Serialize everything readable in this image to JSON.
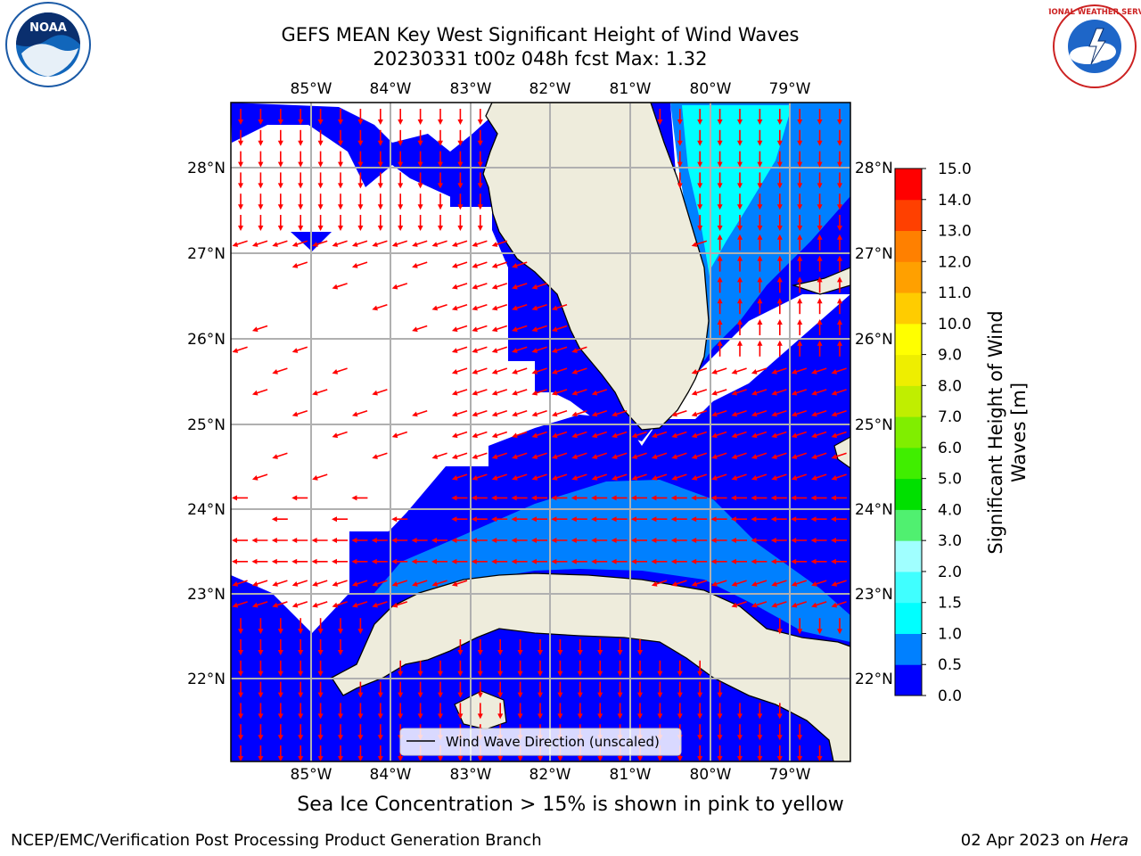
{
  "title": {
    "line1": "GEFS MEAN Key West Significant Height of Wind Waves",
    "line2": "20230331 t00z 048h fcst   Max: 1.32"
  },
  "logos": {
    "left_icon": "noaa-logo-icon",
    "left_text": "NOAA",
    "right_icon": "national-weather-service-logo-icon",
    "right_text": "NATIONAL WEATHER SERVICE"
  },
  "map": {
    "lon_labels": [
      "85°W",
      "84°W",
      "83°W",
      "82°W",
      "81°W",
      "80°W",
      "79°W"
    ],
    "lat_labels": [
      "28°N",
      "27°N",
      "26°N",
      "25°N",
      "24°N",
      "23°N",
      "22°N"
    ],
    "legend_label": "Wind Wave Direction (unscaled)",
    "colors": {
      "land": "#eeecdc",
      "water_0_0.5": "#0000ff",
      "water_0.5_1.0": "#0080ff",
      "water_1.0_1.5": "#00ffff",
      "arrows": "#ff0000",
      "grid": "#b0b0b0"
    }
  },
  "colorbar": {
    "label_line1": "Significant Height of Wind",
    "label_line2": "Waves [m]",
    "ticks": [
      "0.0",
      "0.5",
      "1.0",
      "1.5",
      "2.0",
      "3.0",
      "4.0",
      "5.0",
      "6.0",
      "7.0",
      "8.0",
      "9.0",
      "10.0",
      "11.0",
      "12.0",
      "13.0",
      "14.0",
      "15.0"
    ],
    "colors": [
      "#0000ff",
      "#0080ff",
      "#00ffff",
      "#40ffff",
      "#a0ffff",
      "#50f070",
      "#00e000",
      "#40ee00",
      "#80ee00",
      "#c0ee00",
      "#eeee00",
      "#ffff00",
      "#ffcc00",
      "#ffa000",
      "#ff8000",
      "#ff4000",
      "#ff0000"
    ]
  },
  "footer": {
    "note": "Sea Ice Concentration > 15% is shown in pink to yellow",
    "left": "NCEP/EMC/Verification Post Processing Product Generation Branch",
    "right_date": "02 Apr 2023 on",
    "right_host": "Hera"
  }
}
